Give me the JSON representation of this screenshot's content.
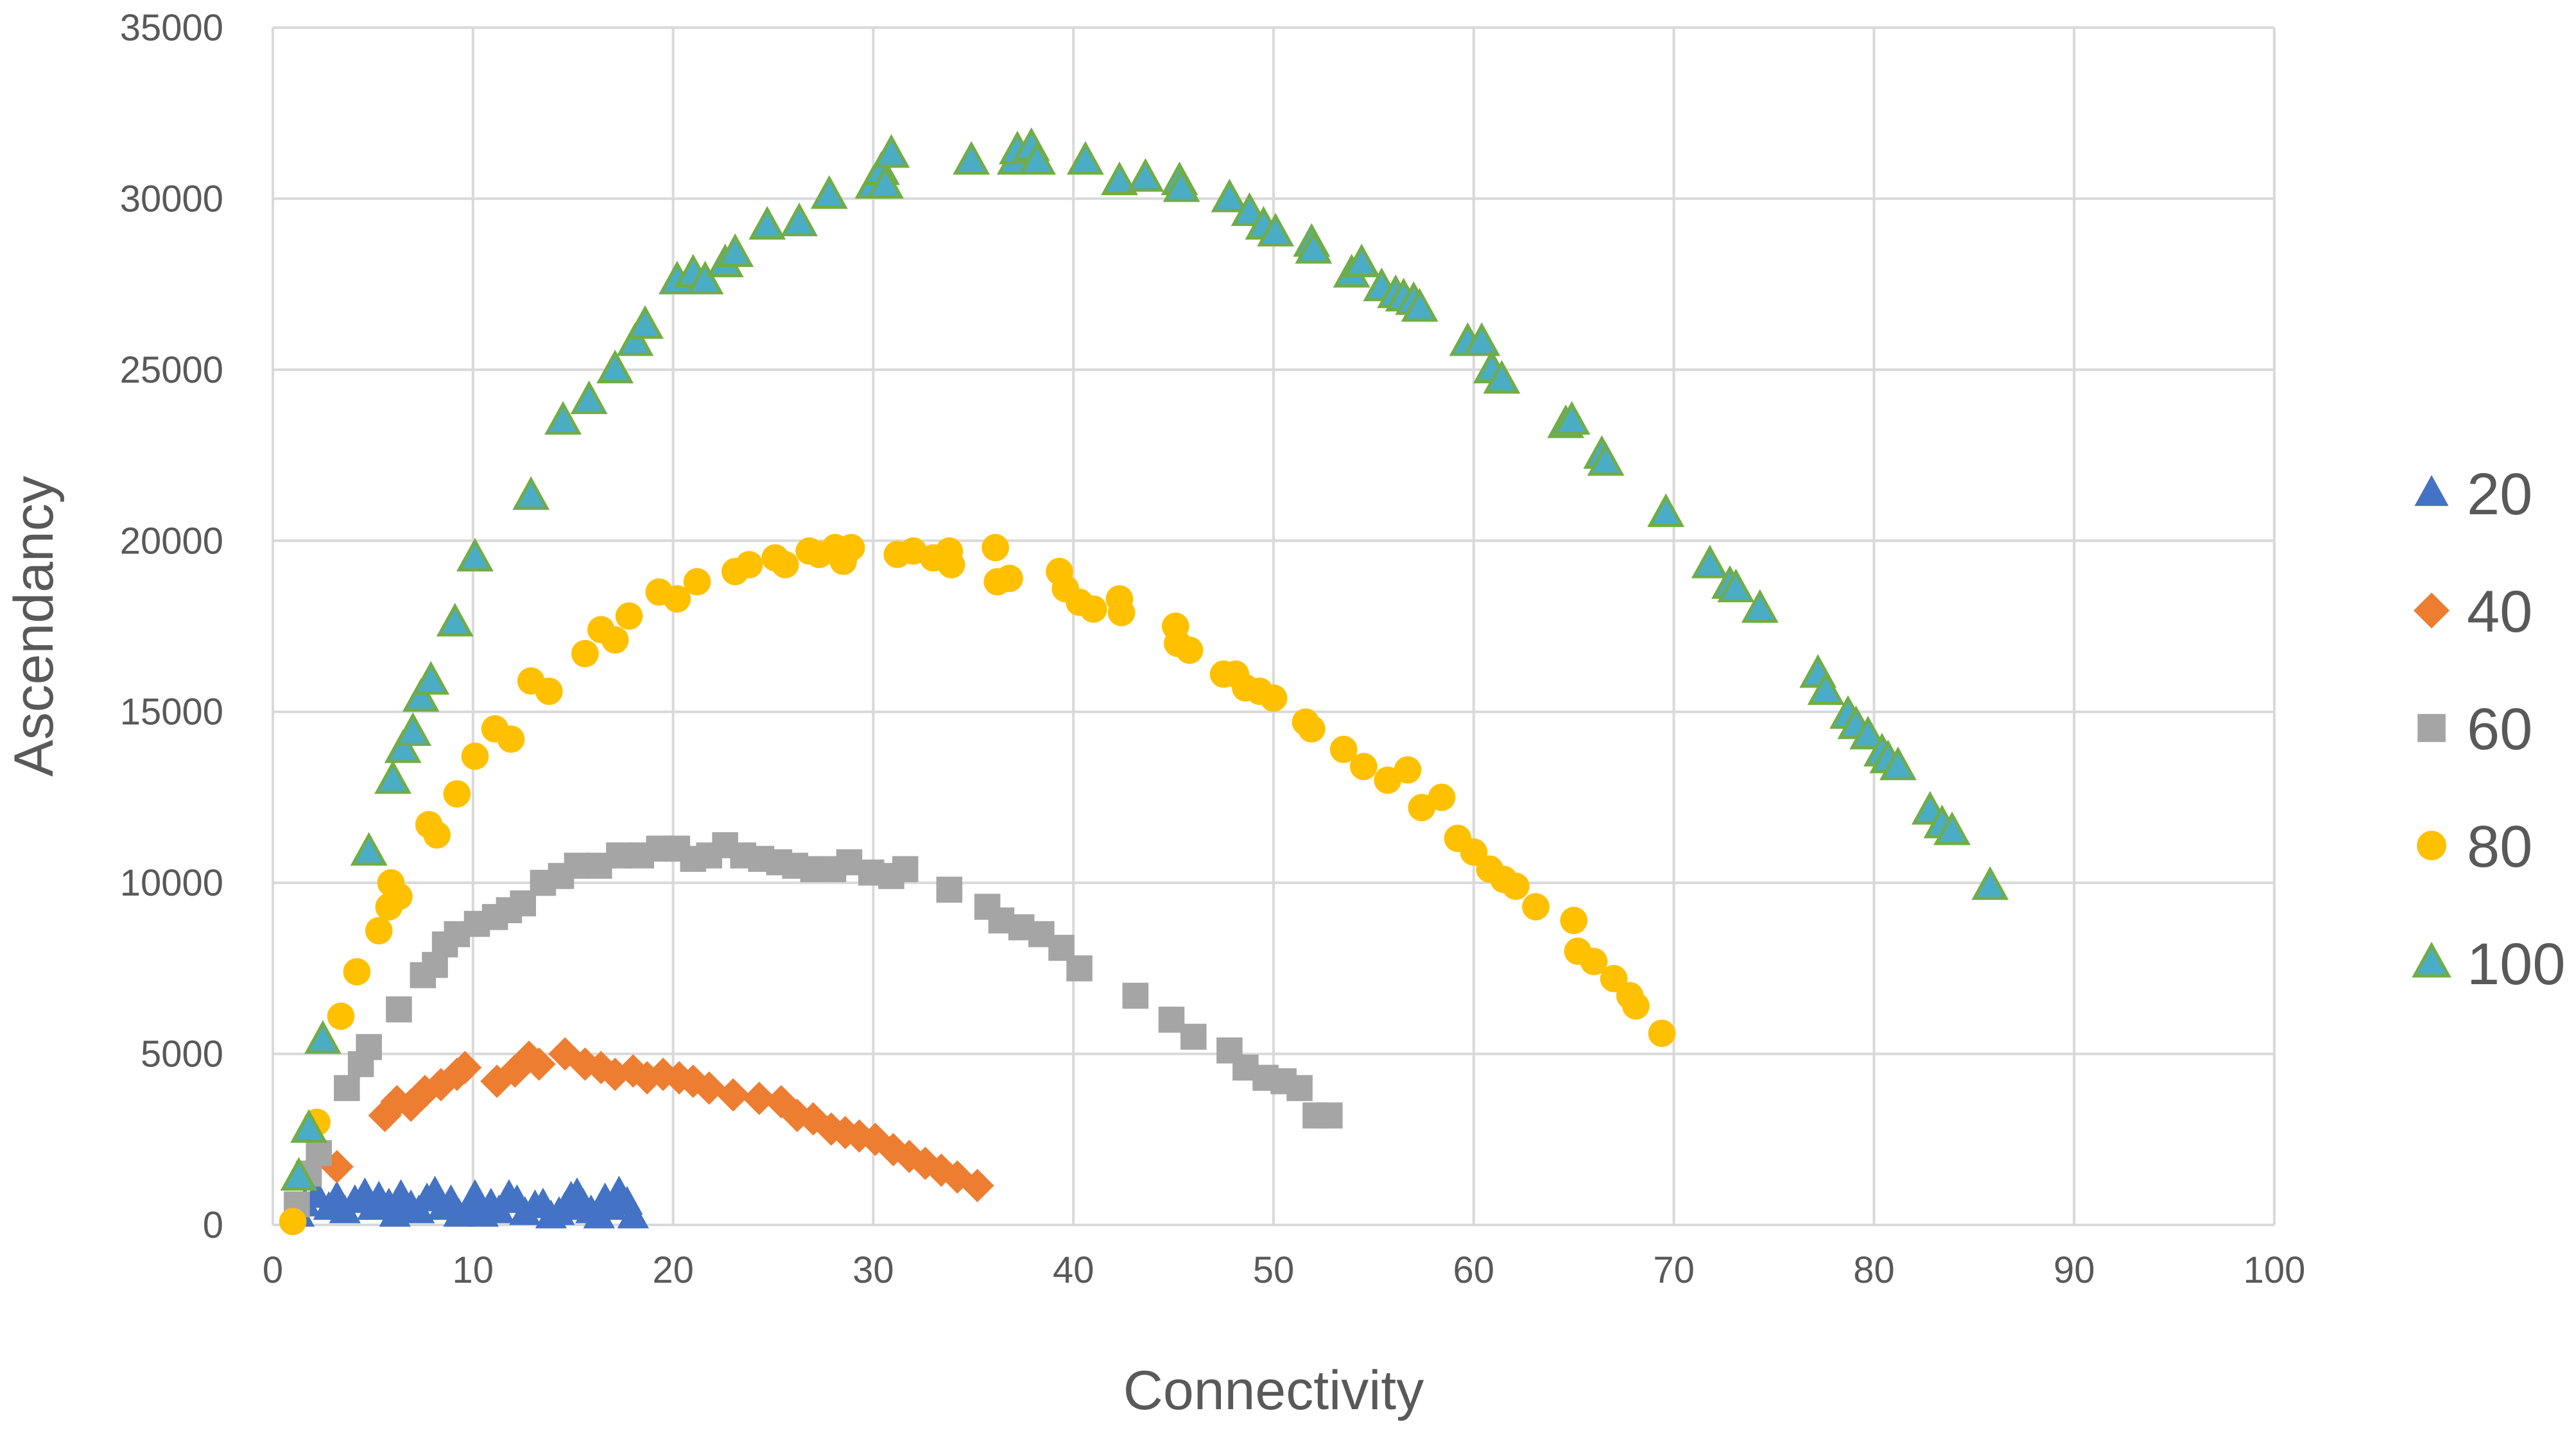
{
  "chart_data": {
    "type": "scatter",
    "title": "",
    "xlabel": "Connectivity",
    "ylabel": "Ascendancy",
    "xlim": [
      0,
      100
    ],
    "ylim": [
      0,
      35000
    ],
    "x_ticks": [
      0,
      10,
      20,
      30,
      40,
      50,
      60,
      70,
      80,
      90,
      100
    ],
    "y_ticks": [
      0,
      5000,
      10000,
      15000,
      20000,
      25000,
      30000,
      35000
    ],
    "grid": "on",
    "legend_position": "right",
    "series": [
      {
        "name": "20",
        "marker": "triangle",
        "color": "#4472C4",
        "points": [
          [
            1.3,
            300
          ],
          [
            1.6,
            600
          ],
          [
            2.2,
            850
          ],
          [
            2.8,
            500
          ],
          [
            3.2,
            800
          ],
          [
            3.6,
            400
          ],
          [
            4.1,
            700
          ],
          [
            4.6,
            900
          ],
          [
            5.0,
            500
          ],
          [
            5.3,
            800
          ],
          [
            5.8,
            600
          ],
          [
            6.1,
            300
          ],
          [
            6.4,
            850
          ],
          [
            6.9,
            550
          ],
          [
            7.3,
            400
          ],
          [
            7.7,
            750
          ],
          [
            8.1,
            950
          ],
          [
            8.5,
            500
          ],
          [
            8.9,
            700
          ],
          [
            9.3,
            300
          ],
          [
            9.8,
            500
          ],
          [
            10.1,
            850
          ],
          [
            10.5,
            300
          ],
          [
            10.9,
            600
          ],
          [
            11.3,
            400
          ],
          [
            11.8,
            850
          ],
          [
            12.2,
            700
          ],
          [
            12.6,
            350
          ],
          [
            13.1,
            550
          ],
          [
            13.5,
            600
          ],
          [
            13.9,
            250
          ],
          [
            14.3,
            350
          ],
          [
            14.6,
            500
          ],
          [
            14.9,
            800
          ],
          [
            15.2,
            900
          ],
          [
            15.5,
            600
          ],
          [
            15.9,
            400
          ],
          [
            16.3,
            250
          ],
          [
            16.6,
            750
          ],
          [
            16.9,
            500
          ],
          [
            17.3,
            950
          ],
          [
            17.7,
            650
          ],
          [
            18.0,
            250
          ]
        ]
      },
      {
        "name": "40",
        "marker": "diamond",
        "color": "#ED7D31",
        "points": [
          [
            3.2,
            1700
          ],
          [
            5.6,
            3200
          ],
          [
            6.2,
            3600
          ],
          [
            6.9,
            3500
          ],
          [
            7.6,
            3900
          ],
          [
            8.4,
            4100
          ],
          [
            9.2,
            4400
          ],
          [
            9.6,
            4600
          ],
          [
            11.2,
            4200
          ],
          [
            12.1,
            4500
          ],
          [
            12.8,
            4900
          ],
          [
            13.3,
            4700
          ],
          [
            14.6,
            5000
          ],
          [
            15.6,
            4700
          ],
          [
            16.4,
            4600
          ],
          [
            17.1,
            4400
          ],
          [
            18.0,
            4500
          ],
          [
            18.7,
            4300
          ],
          [
            19.5,
            4400
          ],
          [
            20.3,
            4300
          ],
          [
            21.0,
            4200
          ],
          [
            21.8,
            4000
          ],
          [
            23.0,
            3800
          ],
          [
            24.3,
            3700
          ],
          [
            25.4,
            3600
          ],
          [
            26.2,
            3200
          ],
          [
            27.0,
            3100
          ],
          [
            27.9,
            2800
          ],
          [
            28.6,
            2700
          ],
          [
            29.3,
            2600
          ],
          [
            30.1,
            2500
          ],
          [
            31.0,
            2200
          ],
          [
            31.8,
            2000
          ],
          [
            32.6,
            1800
          ],
          [
            33.4,
            1600
          ],
          [
            34.2,
            1400
          ],
          [
            35.2,
            1150
          ]
        ]
      },
      {
        "name": "60",
        "marker": "square",
        "color": "#A5A5A5",
        "points": [
          [
            1.2,
            600
          ],
          [
            1.8,
            1500
          ],
          [
            2.3,
            2100
          ],
          [
            3.7,
            4000
          ],
          [
            4.4,
            4700
          ],
          [
            4.8,
            5200
          ],
          [
            6.3,
            6300
          ],
          [
            7.5,
            7300
          ],
          [
            8.1,
            7600
          ],
          [
            8.6,
            8200
          ],
          [
            9.2,
            8500
          ],
          [
            10.2,
            8800
          ],
          [
            11.1,
            9000
          ],
          [
            11.8,
            9200
          ],
          [
            12.5,
            9400
          ],
          [
            13.5,
            10000
          ],
          [
            14.4,
            10200
          ],
          [
            15.2,
            10500
          ],
          [
            16.3,
            10500
          ],
          [
            17.3,
            10800
          ],
          [
            18.4,
            10800
          ],
          [
            19.3,
            11000
          ],
          [
            20.2,
            11000
          ],
          [
            21.0,
            10700
          ],
          [
            21.8,
            10800
          ],
          [
            22.6,
            11100
          ],
          [
            23.5,
            10800
          ],
          [
            24.4,
            10700
          ],
          [
            25.3,
            10600
          ],
          [
            26.1,
            10500
          ],
          [
            27.0,
            10400
          ],
          [
            28.0,
            10400
          ],
          [
            28.8,
            10600
          ],
          [
            29.9,
            10300
          ],
          [
            30.9,
            10200
          ],
          [
            31.6,
            10400
          ],
          [
            33.8,
            9800
          ],
          [
            35.7,
            9300
          ],
          [
            36.4,
            8900
          ],
          [
            37.4,
            8700
          ],
          [
            38.4,
            8500
          ],
          [
            39.4,
            8100
          ],
          [
            40.3,
            7500
          ],
          [
            43.1,
            6700
          ],
          [
            44.9,
            6000
          ],
          [
            46.0,
            5500
          ],
          [
            47.8,
            5100
          ],
          [
            48.6,
            4600
          ],
          [
            49.6,
            4300
          ],
          [
            50.5,
            4200
          ],
          [
            51.3,
            4000
          ],
          [
            52.1,
            3200
          ],
          [
            52.8,
            3200
          ]
        ]
      },
      {
        "name": "80",
        "marker": "circle",
        "color": "#FFC000",
        "points": [
          [
            1.0,
            100
          ],
          [
            2.2,
            3000
          ],
          [
            3.4,
            6100
          ],
          [
            4.2,
            7400
          ],
          [
            5.3,
            8600
          ],
          [
            5.8,
            9300
          ],
          [
            6.3,
            9600
          ],
          [
            5.9,
            10000
          ],
          [
            7.8,
            11700
          ],
          [
            8.2,
            11400
          ],
          [
            9.2,
            12600
          ],
          [
            10.1,
            13700
          ],
          [
            11.1,
            14500
          ],
          [
            11.9,
            14200
          ],
          [
            12.9,
            15900
          ],
          [
            13.8,
            15600
          ],
          [
            15.6,
            16700
          ],
          [
            16.4,
            17400
          ],
          [
            17.1,
            17100
          ],
          [
            17.8,
            17800
          ],
          [
            19.3,
            18500
          ],
          [
            20.2,
            18300
          ],
          [
            21.2,
            18800
          ],
          [
            23.1,
            19100
          ],
          [
            23.8,
            19300
          ],
          [
            25.1,
            19500
          ],
          [
            25.6,
            19300
          ],
          [
            26.8,
            19700
          ],
          [
            27.3,
            19600
          ],
          [
            28.1,
            19800
          ],
          [
            28.5,
            19400
          ],
          [
            28.9,
            19800
          ],
          [
            31.2,
            19600
          ],
          [
            32.0,
            19700
          ],
          [
            33.0,
            19500
          ],
          [
            33.8,
            19700
          ],
          [
            33.9,
            19300
          ],
          [
            36.1,
            19800
          ],
          [
            36.2,
            18800
          ],
          [
            36.8,
            18900
          ],
          [
            39.3,
            19100
          ],
          [
            39.6,
            18600
          ],
          [
            40.3,
            18200
          ],
          [
            41.0,
            18000
          ],
          [
            42.3,
            18300
          ],
          [
            42.4,
            17900
          ],
          [
            45.1,
            17500
          ],
          [
            45.2,
            17000
          ],
          [
            45.8,
            16800
          ],
          [
            47.5,
            16100
          ],
          [
            48.1,
            16100
          ],
          [
            48.6,
            15700
          ],
          [
            49.3,
            15600
          ],
          [
            50.0,
            15400
          ],
          [
            51.6,
            14700
          ],
          [
            51.9,
            14500
          ],
          [
            53.5,
            13900
          ],
          [
            54.5,
            13400
          ],
          [
            55.7,
            13000
          ],
          [
            56.7,
            13300
          ],
          [
            57.4,
            12200
          ],
          [
            58.4,
            12500
          ],
          [
            59.2,
            11300
          ],
          [
            60.0,
            10900
          ],
          [
            60.8,
            10400
          ],
          [
            61.5,
            10100
          ],
          [
            62.1,
            9900
          ],
          [
            63.1,
            9300
          ],
          [
            65.0,
            8900
          ],
          [
            65.2,
            8000
          ],
          [
            66.0,
            7700
          ],
          [
            67.0,
            7200
          ],
          [
            67.8,
            6700
          ],
          [
            68.1,
            6400
          ],
          [
            69.4,
            5600
          ]
        ]
      },
      {
        "name": "100",
        "marker": "triangle",
        "color": "#4BACC6",
        "stroke": "#70AD47",
        "points": [
          [
            1.3,
            1400
          ],
          [
            1.8,
            2800
          ],
          [
            2.5,
            5400
          ],
          [
            4.8,
            10900
          ],
          [
            6.0,
            13000
          ],
          [
            6.5,
            13900
          ],
          [
            7.0,
            14400
          ],
          [
            7.4,
            15400
          ],
          [
            7.9,
            15900
          ],
          [
            9.1,
            17600
          ],
          [
            10.1,
            19500
          ],
          [
            12.9,
            21300
          ],
          [
            14.5,
            23500
          ],
          [
            15.8,
            24100
          ],
          [
            17.1,
            25000
          ],
          [
            18.1,
            25800
          ],
          [
            18.6,
            26300
          ],
          [
            20.2,
            27600
          ],
          [
            21.0,
            27800
          ],
          [
            21.6,
            27600
          ],
          [
            22.6,
            28100
          ],
          [
            23.1,
            28400
          ],
          [
            24.7,
            29200
          ],
          [
            26.3,
            29300
          ],
          [
            27.8,
            30100
          ],
          [
            30.0,
            30400
          ],
          [
            30.4,
            30800
          ],
          [
            30.9,
            31300
          ],
          [
            30.6,
            30400
          ],
          [
            34.9,
            31100
          ],
          [
            37.1,
            31100
          ],
          [
            37.2,
            31400
          ],
          [
            37.9,
            31500
          ],
          [
            38.2,
            31100
          ],
          [
            40.6,
            31100
          ],
          [
            42.3,
            30500
          ],
          [
            43.6,
            30600
          ],
          [
            45.3,
            30500
          ],
          [
            45.4,
            30300
          ],
          [
            47.8,
            30000
          ],
          [
            48.8,
            29600
          ],
          [
            49.5,
            29200
          ],
          [
            50.1,
            29000
          ],
          [
            51.9,
            28700
          ],
          [
            52.0,
            28500
          ],
          [
            53.9,
            27800
          ],
          [
            54.4,
            28100
          ],
          [
            55.4,
            27400
          ],
          [
            56.1,
            27200
          ],
          [
            56.5,
            27100
          ],
          [
            57.0,
            27000
          ],
          [
            57.3,
            26800
          ],
          [
            59.7,
            25800
          ],
          [
            60.4,
            25800
          ],
          [
            60.9,
            25000
          ],
          [
            61.4,
            24700
          ],
          [
            64.6,
            23400
          ],
          [
            64.9,
            23500
          ],
          [
            66.4,
            22500
          ],
          [
            66.6,
            22300
          ],
          [
            69.6,
            20800
          ],
          [
            71.8,
            19300
          ],
          [
            72.8,
            18700
          ],
          [
            73.1,
            18600
          ],
          [
            74.3,
            18000
          ],
          [
            77.2,
            16100
          ],
          [
            77.6,
            15600
          ],
          [
            78.7,
            14900
          ],
          [
            79.1,
            14600
          ],
          [
            79.7,
            14300
          ],
          [
            80.4,
            13800
          ],
          [
            80.7,
            13600
          ],
          [
            81.2,
            13400
          ],
          [
            82.8,
            12100
          ],
          [
            83.4,
            11700
          ],
          [
            83.9,
            11500
          ],
          [
            85.8,
            9900
          ]
        ]
      }
    ]
  }
}
